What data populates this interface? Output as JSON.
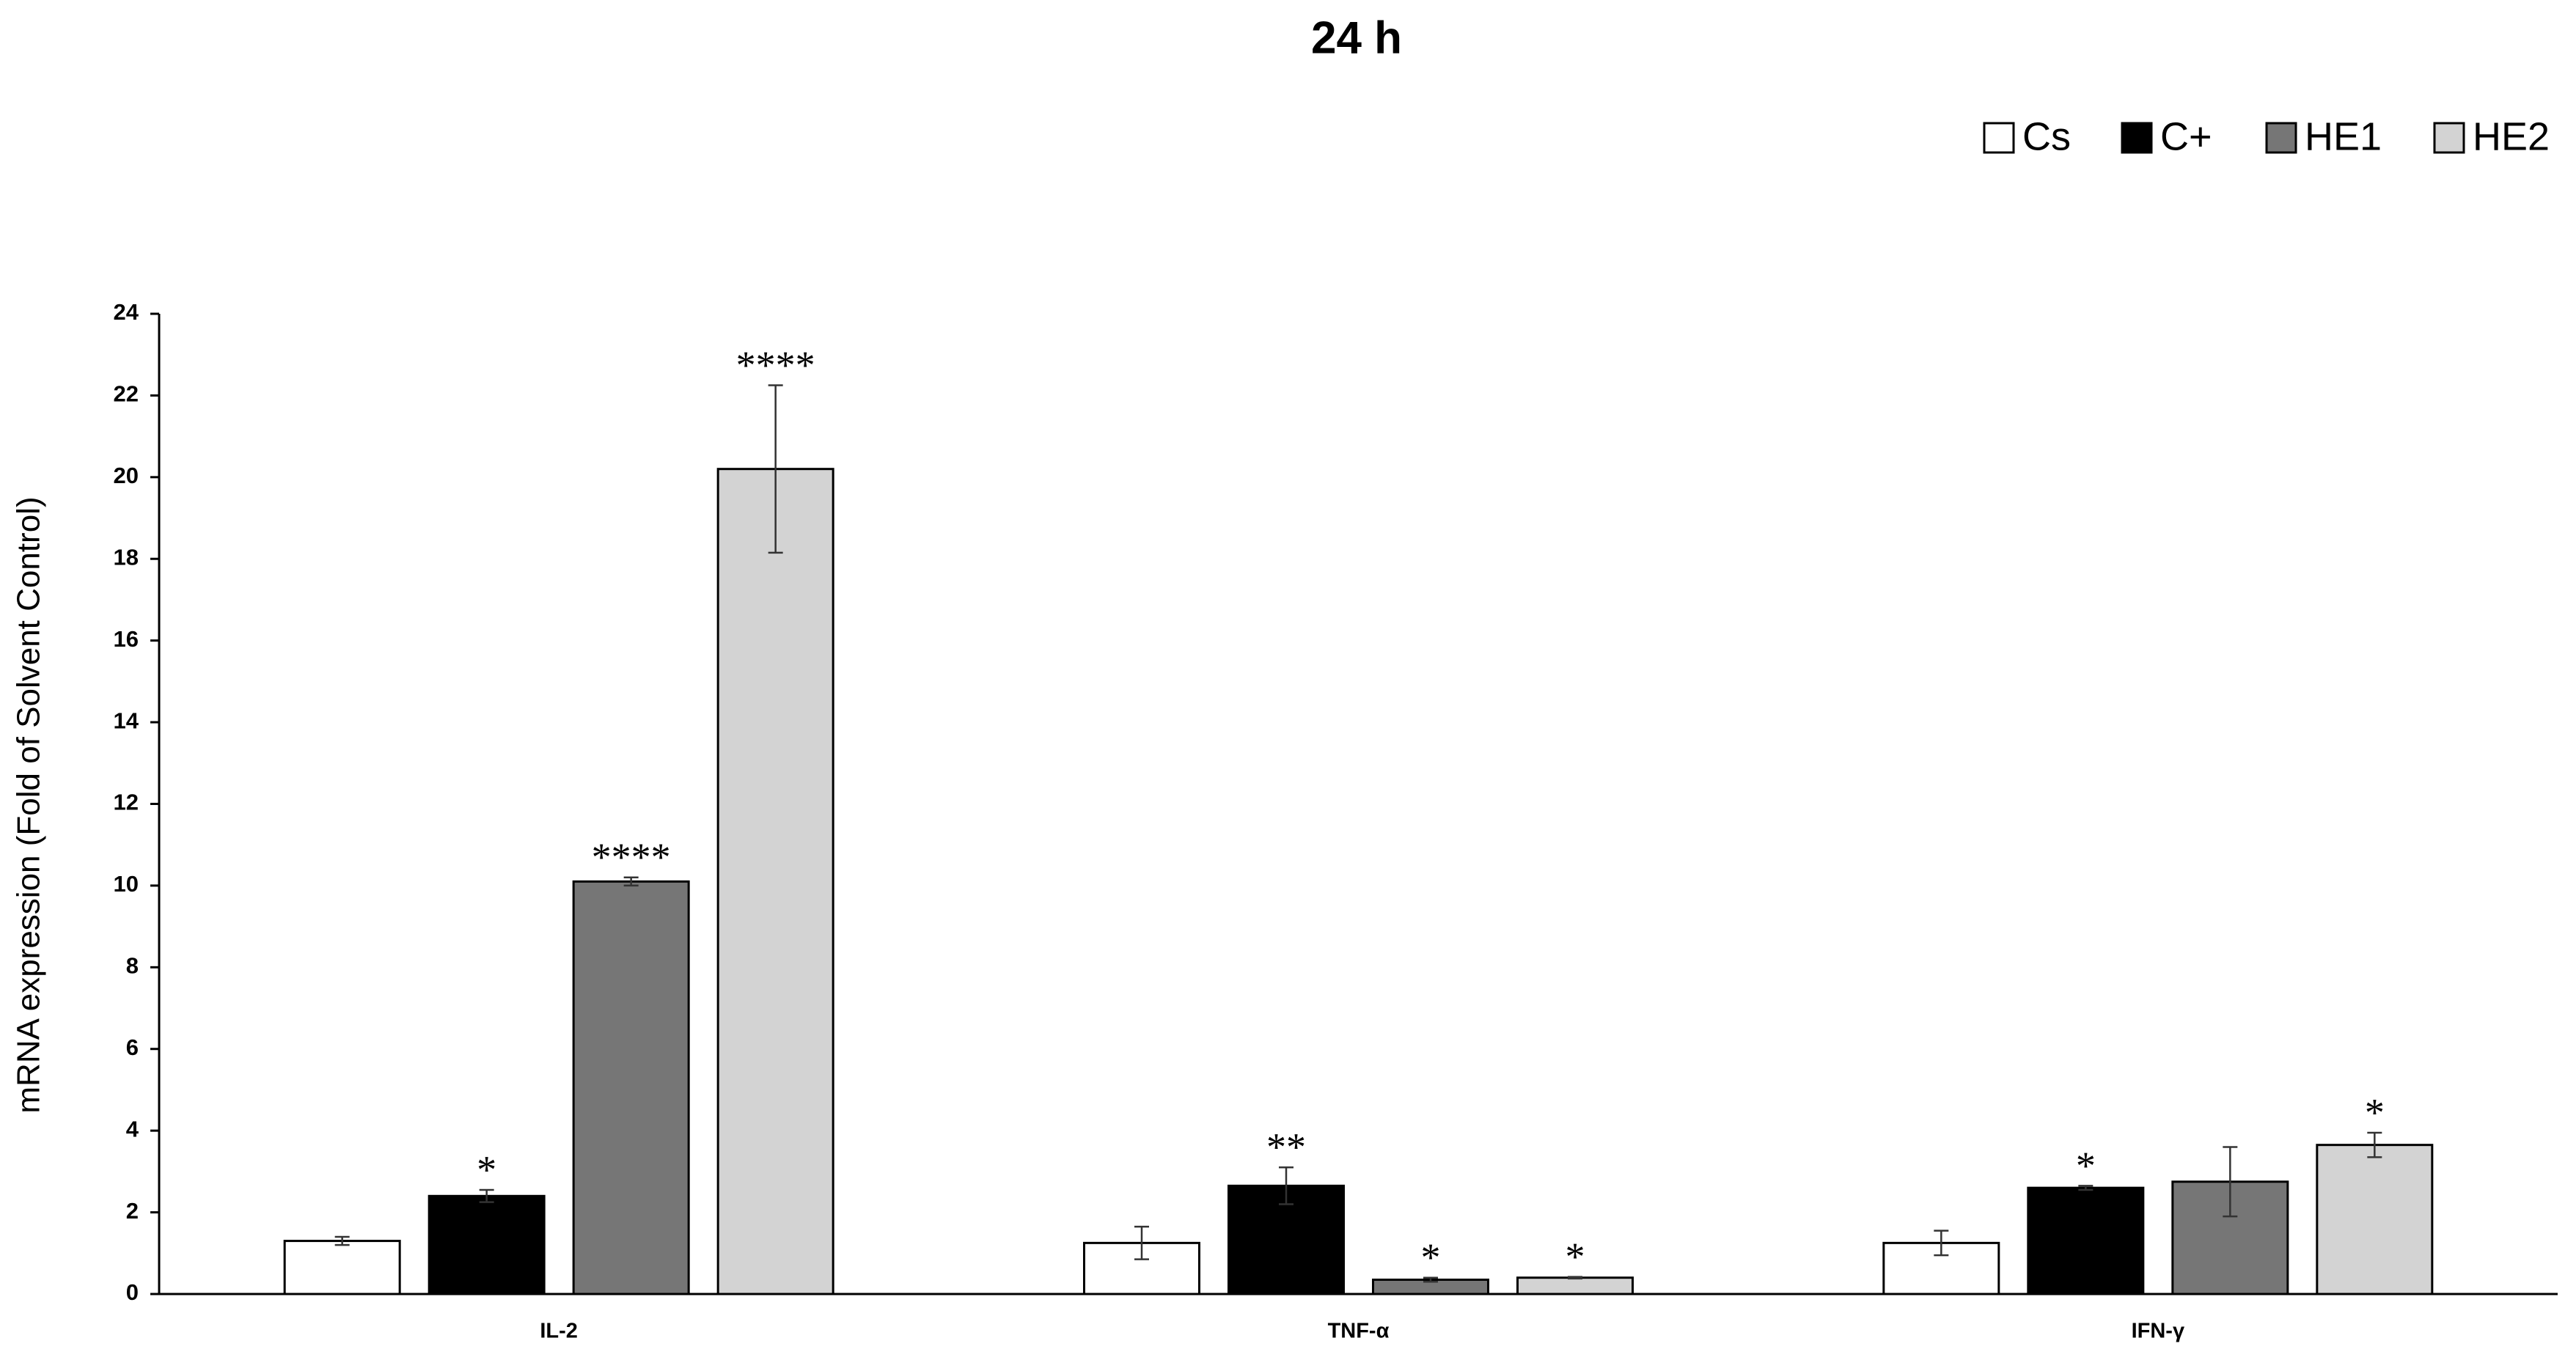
{
  "chart_data": {
    "type": "bar",
    "title": "24 h",
    "y_label": "mRNA expression (Fold of Solvent Control)",
    "categories": [
      "IL-2",
      "TNF-α",
      "IFN-γ"
    ],
    "series": [
      {
        "name": "Cs",
        "color": "#ffffff",
        "values": [
          1.3,
          1.25,
          1.25
        ],
        "errors": [
          0.1,
          0.4,
          0.3
        ],
        "annotations": [
          null,
          null,
          null
        ]
      },
      {
        "name": "C+",
        "color": "#000000",
        "values": [
          2.4,
          2.65,
          2.6
        ],
        "errors": [
          0.15,
          0.45,
          0.05
        ],
        "annotations": [
          "*",
          "**",
          "*"
        ]
      },
      {
        "name": "HE1",
        "color": "#767676",
        "values": [
          10.1,
          0.35,
          2.75
        ],
        "errors": [
          0.1,
          0.05,
          0.85
        ],
        "annotations": [
          "****",
          "*",
          null
        ]
      },
      {
        "name": "HE2",
        "color": "#d3d3d3",
        "values": [
          20.2,
          0.4,
          3.65
        ],
        "errors": [
          2.05,
          0.02,
          0.3
        ],
        "annotations": [
          "****",
          "*",
          "*"
        ]
      }
    ],
    "ylim": [
      0,
      24
    ],
    "yticks": [
      0,
      2,
      4,
      6,
      8,
      10,
      12,
      14,
      16,
      18,
      20,
      22,
      24
    ],
    "grid": false,
    "legend": "top-right"
  }
}
